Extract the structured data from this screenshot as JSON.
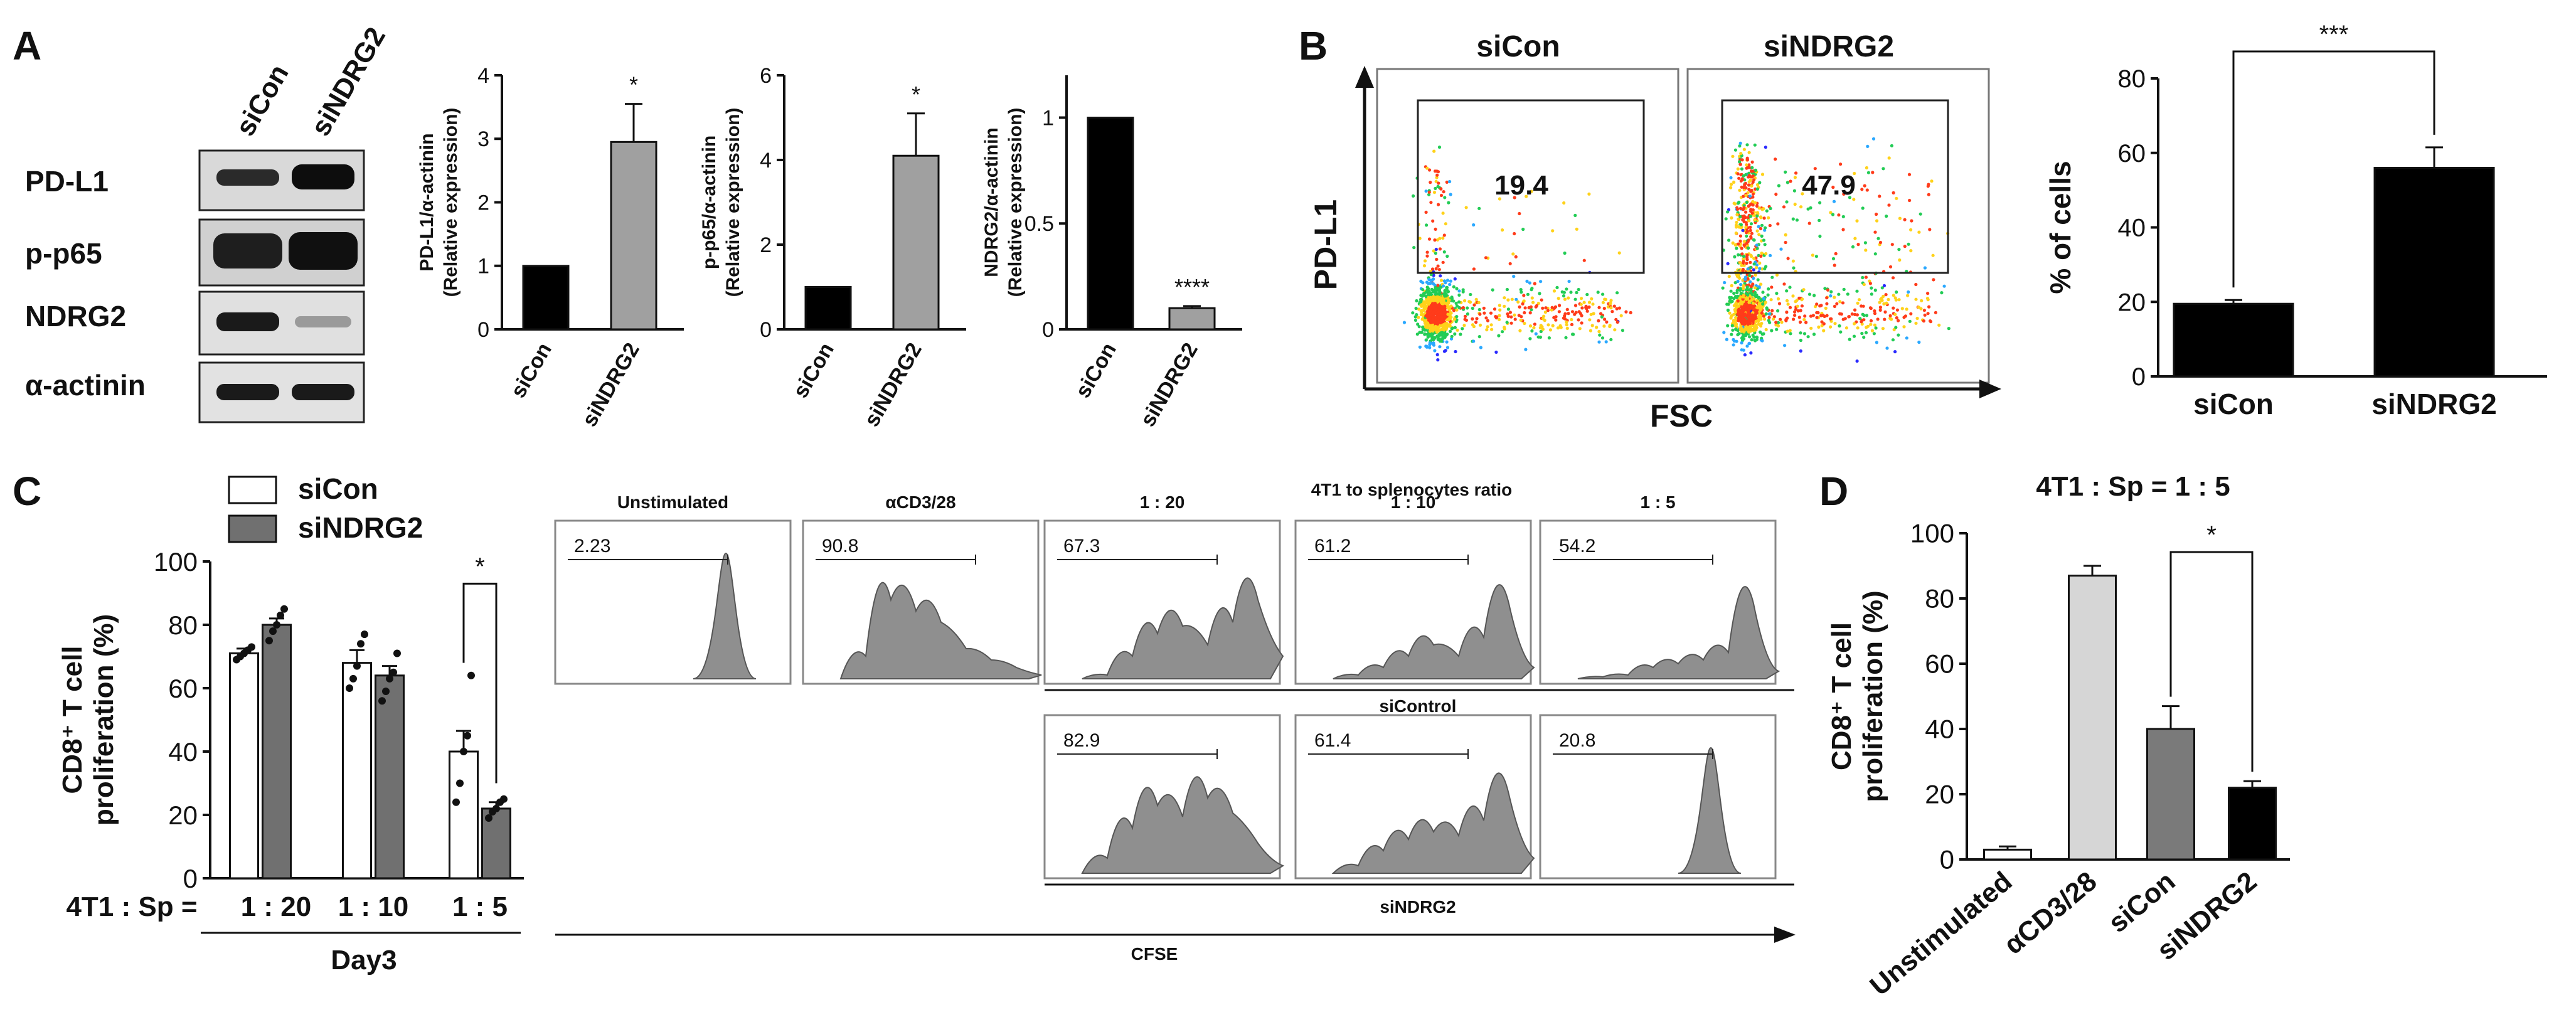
{
  "panel_letters": {
    "a": "A",
    "b": "B",
    "c": "C",
    "d": "D"
  },
  "blot": {
    "columns": [
      "siCon",
      "siNDRG2"
    ],
    "rows": [
      "PD-L1",
      "p-p65",
      "NDRG2",
      "α-actinin"
    ]
  },
  "chart_data": [
    {
      "id": "a1",
      "type": "bar",
      "categories": [
        "siCon",
        "siNDRG2"
      ],
      "values": [
        1.0,
        2.95
      ],
      "errors": [
        0,
        0.6
      ],
      "colors": [
        "#000000",
        "#a0a0a0"
      ],
      "ylabel_lines": [
        "PD-L1/α-actinin",
        "(Relative expression)"
      ],
      "ylim": [
        0,
        4
      ],
      "ticks": [
        "0",
        "1",
        "2",
        "3",
        "4"
      ],
      "sig": [
        {
          "bar": 1,
          "text": "*"
        }
      ]
    },
    {
      "id": "a2",
      "type": "bar",
      "categories": [
        "siCon",
        "siNDRG2"
      ],
      "values": [
        1.0,
        4.1
      ],
      "errors": [
        0,
        1.0
      ],
      "colors": [
        "#000000",
        "#a0a0a0"
      ],
      "ylabel_lines": [
        "p-p65/α-actinin",
        "(Relative expression)"
      ],
      "ylim": [
        0,
        6
      ],
      "ticks": [
        "0",
        "2",
        "4",
        "6"
      ],
      "sig": [
        {
          "bar": 1,
          "text": "*"
        }
      ]
    },
    {
      "id": "a3",
      "type": "bar",
      "categories": [
        "siCon",
        "siNDRG2"
      ],
      "values": [
        1.0,
        0.1
      ],
      "errors": [
        0,
        0.01
      ],
      "colors": [
        "#000000",
        "#a0a0a0"
      ],
      "ylabel_lines": [
        "NDRG2/α-actinin",
        "(Relative expression)"
      ],
      "ylim": [
        0,
        1.2
      ],
      "ticks": [
        "0",
        "0.5",
        "1"
      ],
      "sig": [
        {
          "bar": 1,
          "text": "****"
        }
      ]
    },
    {
      "id": "b_bar",
      "type": "bar",
      "categories": [
        "siCon",
        "siNDRG2"
      ],
      "values": [
        19.5,
        56
      ],
      "errors": [
        1,
        5.5
      ],
      "colors": [
        "#000000",
        "#000000"
      ],
      "ylabel": "% of cells",
      "ylim": [
        0,
        80
      ],
      "ticks": [
        "0",
        "20",
        "40",
        "60",
        "80"
      ],
      "bracket": "***"
    },
    {
      "id": "c_bar",
      "type": "bar",
      "legend": [
        {
          "name": "siCon",
          "color": "#ffffff"
        },
        {
          "name": "siNDRG2",
          "color": "#707070"
        }
      ],
      "groups": [
        "1 : 20",
        "1 : 10",
        "1 : 5"
      ],
      "group_prefix": "4T1 : Sp =",
      "group_title": "Day3",
      "series": [
        {
          "name": "siCon",
          "values": [
            71,
            68,
            40
          ],
          "errors": [
            1.5,
            4,
            6.5
          ],
          "points": [
            [
              69,
              70,
              71,
              72,
              73
            ],
            [
              60,
              63,
              67,
              74,
              77
            ],
            [
              24,
              30,
              40,
              45,
              64
            ]
          ]
        },
        {
          "name": "siNDRG2",
          "values": [
            80,
            64,
            22
          ],
          "errors": [
            2,
            3,
            2
          ],
          "points": [
            [
              75,
              78,
              80,
              83,
              85
            ],
            [
              56,
              59,
              63,
              65,
              71
            ],
            [
              19,
              21,
              22,
              24,
              25
            ]
          ]
        }
      ],
      "ylabel_lines": [
        "CD8⁺ T cell",
        "proliferation (%)"
      ],
      "ylim": [
        0,
        100
      ],
      "ticks": [
        "0",
        "20",
        "40",
        "60",
        "80",
        "100"
      ],
      "bracket": "*"
    },
    {
      "id": "d_bar",
      "type": "bar",
      "title": "4T1 : Sp = 1 : 5",
      "categories": [
        "Unstimulated",
        "αCD3/28",
        "siCon",
        "siNDRG2"
      ],
      "values": [
        3,
        87,
        40,
        22
      ],
      "errors": [
        1,
        3,
        7,
        2
      ],
      "colors": [
        "#ffffff",
        "#d6d6d6",
        "#7a7a7a",
        "#000000"
      ],
      "ylabel_lines": [
        "CD8⁺ T cell",
        "proliferation (%)"
      ],
      "ylim": [
        0,
        100
      ],
      "ticks": [
        "0",
        "20",
        "40",
        "60",
        "80",
        "100"
      ],
      "bracket": "*"
    }
  ],
  "flow": {
    "panels": [
      {
        "label": "siCon",
        "value": "19.4"
      },
      {
        "label": "siNDRG2",
        "value": "47.9"
      }
    ],
    "ylabel": "PD-L1",
    "xlabel": "FSC"
  },
  "cfse": {
    "header": "4T1 to splenocytes ratio",
    "top_titles": [
      "Unstimulated",
      "αCD3/28",
      "1 : 20",
      "1 : 10",
      "1 : 5"
    ],
    "top_values": [
      "2.23",
      "90.8",
      "67.3",
      "61.2",
      "54.2"
    ],
    "bottom_values": [
      "82.9",
      "61.4",
      "20.8"
    ],
    "row1_label": "siControl",
    "row2_label": "siNDRG2",
    "xlabel": "CFSE"
  }
}
